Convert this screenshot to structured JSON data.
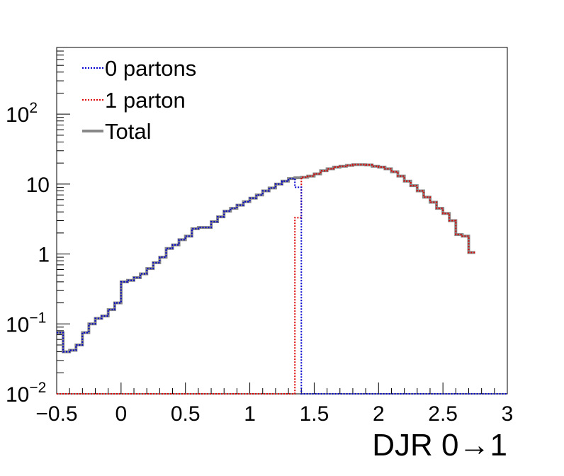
{
  "chart_data": {
    "type": "line",
    "xlabel": "DJR 0→1",
    "ylabel": "",
    "xlim": [
      -0.5,
      3.0
    ],
    "ylim": [
      0.01,
      900
    ],
    "y_scale": "log",
    "grid": false,
    "legend_position": "top-left",
    "x_tick_labels": [
      "−0.5",
      "0",
      "0.5",
      "1",
      "1.5",
      "2",
      "2.5",
      "3"
    ],
    "y_tick_labels": [
      {
        "base": "10",
        "exp": "−2"
      },
      {
        "base": "10",
        "exp": "−1"
      },
      {
        "base": "1",
        "exp": ""
      },
      {
        "base": "10",
        "exp": ""
      },
      {
        "base": "10",
        "exp": "2"
      }
    ],
    "bin_edges_start": -0.5,
    "bin_width": 0.05,
    "series": [
      {
        "name": "0 partons",
        "color": "#0000cc",
        "style": "dotted",
        "values": [
          0.075,
          0.04,
          0.042,
          0.05,
          0.075,
          0.1,
          0.12,
          0.13,
          0.16,
          0.2,
          0.4,
          0.42,
          0.46,
          0.52,
          0.62,
          0.75,
          0.9,
          1.2,
          1.35,
          1.6,
          1.8,
          2.3,
          2.4,
          2.4,
          2.9,
          3.4,
          4.1,
          4.5,
          5.0,
          5.6,
          6.3,
          7.0,
          8.0,
          8.8,
          10.0,
          11.0,
          12.0,
          9.0,
          0.01,
          0.01,
          0.01,
          0.01,
          0.01,
          0.01,
          0.01,
          0.01,
          0.01,
          0.01,
          0.01,
          0.01,
          0.01,
          0.01,
          0.01,
          0.01,
          0.01,
          0.01,
          0.01,
          0.01,
          0.01,
          0.01,
          0.01,
          0.01,
          0.01,
          0.01,
          0.01,
          0.01,
          0.01,
          0.01,
          0.01,
          0.01
        ]
      },
      {
        "name": "1 parton",
        "color": "#dd0000",
        "style": "dotted",
        "values": [
          0.01,
          0.01,
          0.01,
          0.01,
          0.01,
          0.01,
          0.01,
          0.01,
          0.01,
          0.01,
          0.01,
          0.01,
          0.01,
          0.01,
          0.01,
          0.01,
          0.01,
          0.01,
          0.01,
          0.01,
          0.01,
          0.01,
          0.01,
          0.01,
          0.01,
          0.01,
          0.01,
          0.01,
          0.01,
          0.01,
          0.01,
          0.01,
          0.01,
          0.01,
          0.01,
          0.01,
          0.01,
          3.3,
          12.5,
          13.0,
          14.0,
          15.5,
          16.5,
          17.5,
          18.0,
          18.5,
          19.0,
          19.0,
          18.8,
          18.0,
          17.5,
          16.5,
          15.0,
          13.0,
          11.0,
          9.5,
          8.0,
          6.5,
          5.5,
          4.5,
          3.8,
          3.0,
          1.9,
          1.8,
          1.05
        ]
      },
      {
        "name": "Total",
        "color": "#888888",
        "style": "solid",
        "values": [
          0.075,
          0.04,
          0.042,
          0.05,
          0.075,
          0.1,
          0.12,
          0.13,
          0.16,
          0.2,
          0.4,
          0.42,
          0.46,
          0.52,
          0.62,
          0.75,
          0.9,
          1.2,
          1.35,
          1.6,
          1.8,
          2.3,
          2.4,
          2.4,
          2.9,
          3.4,
          4.1,
          4.5,
          5.0,
          5.6,
          6.3,
          7.0,
          8.0,
          8.8,
          10.0,
          11.0,
          12.0,
          12.3,
          12.5,
          13.0,
          14.0,
          15.5,
          16.5,
          17.5,
          18.0,
          18.5,
          19.0,
          19.0,
          18.8,
          18.0,
          17.5,
          16.5,
          15.0,
          13.0,
          11.0,
          9.5,
          8.0,
          6.5,
          5.5,
          4.5,
          3.8,
          3.0,
          1.9,
          1.8,
          1.05
        ]
      }
    ]
  }
}
